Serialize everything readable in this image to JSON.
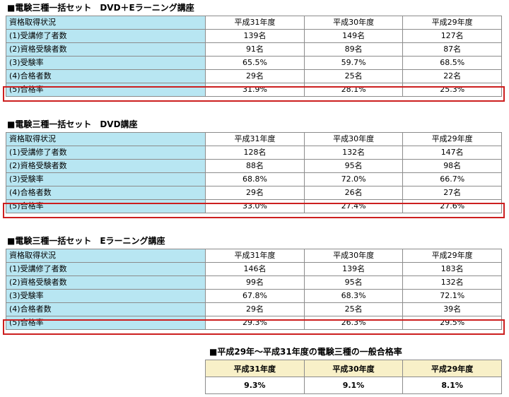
{
  "sections": [
    {
      "title": "■電験三種一括セット　DVD＋Eラーニング講座",
      "headers": [
        "資格取得状況",
        "平成31年度",
        "平成30年度",
        "平成29年度"
      ],
      "rows": [
        {
          "label": "(1)受講修了者数",
          "values": [
            "139名",
            "149名",
            "127名"
          ]
        },
        {
          "label": "(2)資格受験者数",
          "values": [
            "91名",
            "89名",
            "87名"
          ]
        },
        {
          "label": "(3)受験率",
          "values": [
            "65.5%",
            "59.7%",
            "68.5%"
          ]
        },
        {
          "label": "(4)合格者数",
          "values": [
            "29名",
            "25名",
            "22名"
          ]
        },
        {
          "label": "(5)合格率",
          "values": [
            "31.9%",
            "28.1%",
            "25.3%"
          ]
        }
      ]
    },
    {
      "title": "■電験三種一括セット　DVD講座",
      "headers": [
        "資格取得状況",
        "平成31年度",
        "平成30年度",
        "平成29年度"
      ],
      "rows": [
        {
          "label": "(1)受講修了者数",
          "values": [
            "128名",
            "132名",
            "147名"
          ]
        },
        {
          "label": "(2)資格受験者数",
          "values": [
            "88名",
            "95名",
            "98名"
          ]
        },
        {
          "label": "(3)受験率",
          "values": [
            "68.8%",
            "72.0%",
            "66.7%"
          ]
        },
        {
          "label": "(4)合格者数",
          "values": [
            "29名",
            "26名",
            "27名"
          ]
        },
        {
          "label": "(5)合格率",
          "values": [
            "33.0%",
            "27.4%",
            "27.6%"
          ]
        }
      ]
    },
    {
      "title": "■電験三種一括セット　Eラーニング講座",
      "headers": [
        "資格取得状況",
        "平成31年度",
        "平成30年度",
        "平成29年度"
      ],
      "rows": [
        {
          "label": "(1)受講修了者数",
          "values": [
            "146名",
            "139名",
            "183名"
          ]
        },
        {
          "label": "(2)資格受験者数",
          "values": [
            "99名",
            "95名",
            "132名"
          ]
        },
        {
          "label": "(3)受験率",
          "values": [
            "67.8%",
            "68.3%",
            "72.1%"
          ]
        },
        {
          "label": "(4)合格者数",
          "values": [
            "29名",
            "25名",
            "39名"
          ]
        },
        {
          "label": "(5)合格率",
          "values": [
            "29.3%",
            "26.3%",
            "29.5%"
          ]
        }
      ]
    }
  ],
  "general": {
    "title": "■平成29年～平成31年度の電験三種の一般合格率",
    "headers": [
      "平成31年度",
      "平成30年度",
      "平成29年度"
    ],
    "values": [
      "9.3%",
      "9.1%",
      "8.1%"
    ]
  },
  "colors": {
    "label_bg": "#b8e6f2",
    "highlight": "#cc1f1f",
    "general_header_bg": "#f8f0c8"
  }
}
